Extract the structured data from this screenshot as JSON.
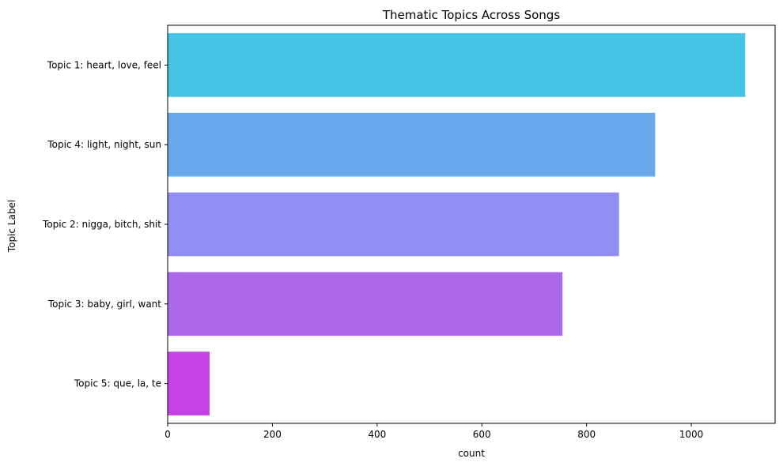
{
  "chart_data": {
    "type": "bar",
    "orientation": "horizontal",
    "title": "Thematic Topics Across Songs",
    "xlabel": "count",
    "ylabel": "Topic Label",
    "xlim": [
      0,
      1160
    ],
    "xticks": [
      0,
      200,
      400,
      600,
      800,
      1000
    ],
    "grid": false,
    "legend": "none",
    "categories": [
      "Topic 1: heart, love, feel",
      "Topic 4: light, night, sun",
      "Topic 2: nigga, bitch, shit",
      "Topic 3: baby, girl, want",
      "Topic 5: que, la, te"
    ],
    "values": [
      1103,
      931,
      862,
      754,
      80
    ],
    "colors": [
      "#45c4e5",
      "#6aa9eb",
      "#918ef1",
      "#ab69ea",
      "#c543e6"
    ]
  }
}
